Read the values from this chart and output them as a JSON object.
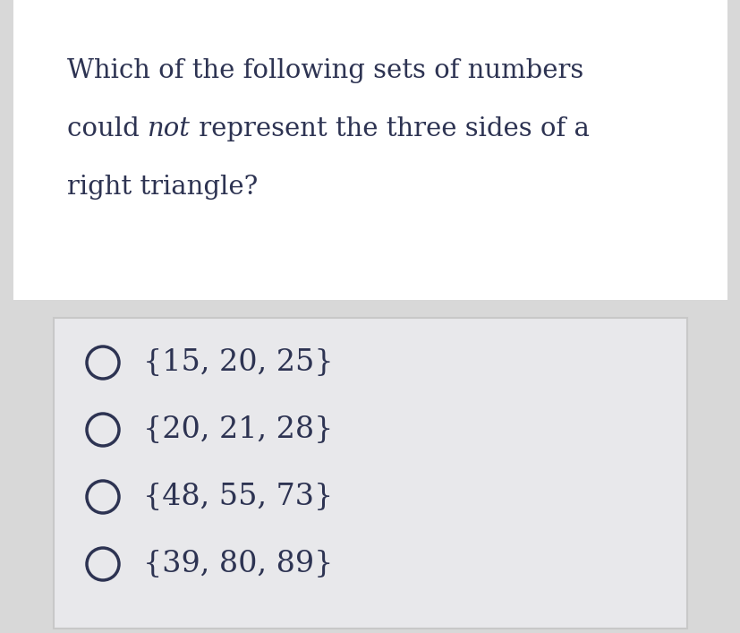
{
  "question_line1": "Which of the following sets of numbers",
  "question_line2_normal1": "could ",
  "question_line2_italic": "not",
  "question_line2_normal2": " represent the three sides of a",
  "question_line3": "right triangle?",
  "options": [
    "{15, 20, 25}",
    "{20, 21, 28}",
    "{48, 55, 73}",
    "{39, 80, 89}"
  ],
  "outer_bg": "#d8d8d8",
  "question_bg": "#ffffff",
  "text_color": "#2d3352",
  "question_fontsize": 21,
  "option_fontsize": 24,
  "circle_color": "#2d3352",
  "box_bg": "#e8e8eb",
  "box_edge_color": "#c8c8c8",
  "fig_width": 8.28,
  "fig_height": 7.07,
  "dpi": 100
}
